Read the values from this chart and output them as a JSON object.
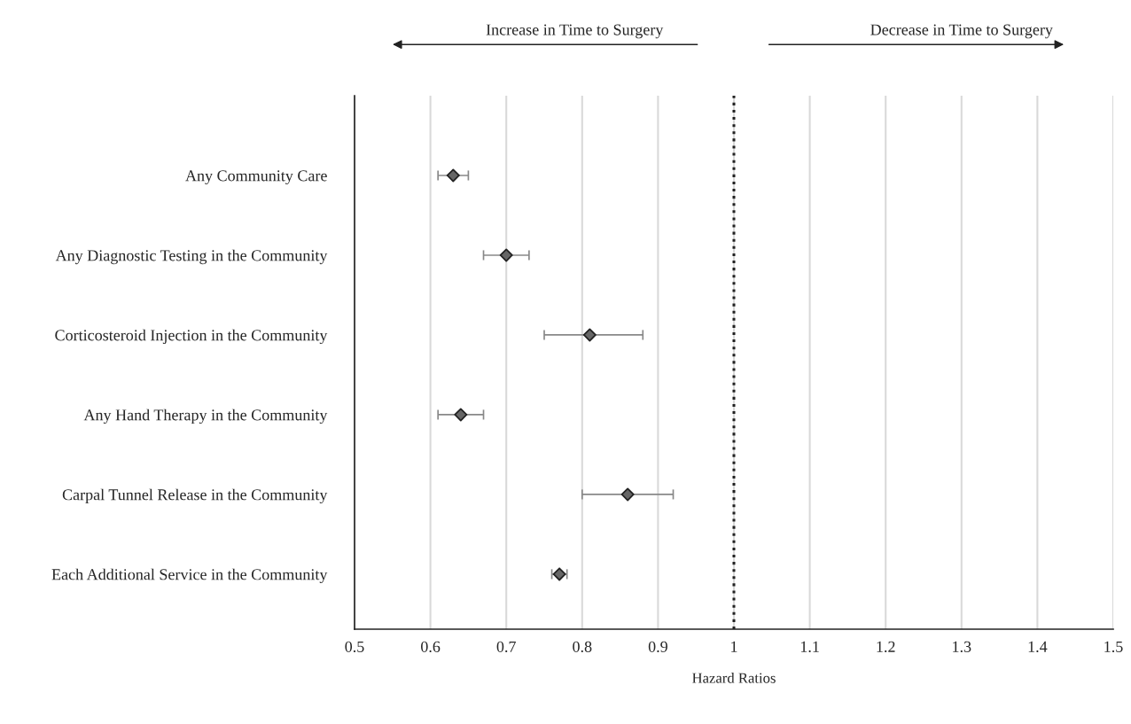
{
  "chart_data": {
    "type": "scatter",
    "orientation": "horizontal",
    "categories": [
      "Any Community Care",
      "Any Diagnostic Testing in the Community",
      "Corticosteroid Injection in the Community",
      "Any Hand Therapy in the Community",
      "Carpal Tunnel Release in the Community",
      "Each Additional Service in the Community"
    ],
    "values": [
      0.63,
      0.7,
      0.81,
      0.64,
      0.86,
      0.77
    ],
    "errors": [
      [
        0.61,
        0.65
      ],
      [
        0.67,
        0.73
      ],
      [
        0.75,
        0.88
      ],
      [
        0.61,
        0.67
      ],
      [
        0.8,
        0.92
      ],
      [
        0.76,
        0.78
      ]
    ],
    "color": "#666666",
    "marker": "diamond",
    "xlabel": "Hazard Ratios",
    "xlim": [
      0.5,
      1.5
    ],
    "xticks": [
      0.5,
      0.6,
      0.7,
      0.8,
      0.9,
      1,
      1.1,
      1.2,
      1.3,
      1.4,
      1.5
    ],
    "grid": "x",
    "ref_lines": [
      {
        "axis": "x",
        "value": 1,
        "color": "#222222",
        "line_style": "dotted"
      }
    ],
    "annotations": [
      "Increase in Time to Surgery",
      "Decrease in Time to Surgery"
    ]
  }
}
